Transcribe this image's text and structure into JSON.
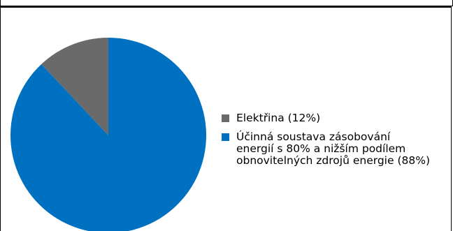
{
  "chart_data": {
    "type": "pie",
    "title": "",
    "slices": [
      {
        "label": "Elektřina (12%)",
        "value": 12,
        "color": "#6a6a6a"
      },
      {
        "label": "Účinná soustava zásobování energií s 80% a nižším podílem obnovitelných zdrojů energie (88%)",
        "value": 88,
        "color": "#0070c0"
      }
    ],
    "legend": {
      "position": "right",
      "lines": [
        [
          "Elektřina (12%)"
        ],
        [
          "Účinná soustava zásobování",
          "energií s 80% a nižším podílem",
          "obnovitelných zdrojů energie (88%)"
        ]
      ]
    }
  }
}
